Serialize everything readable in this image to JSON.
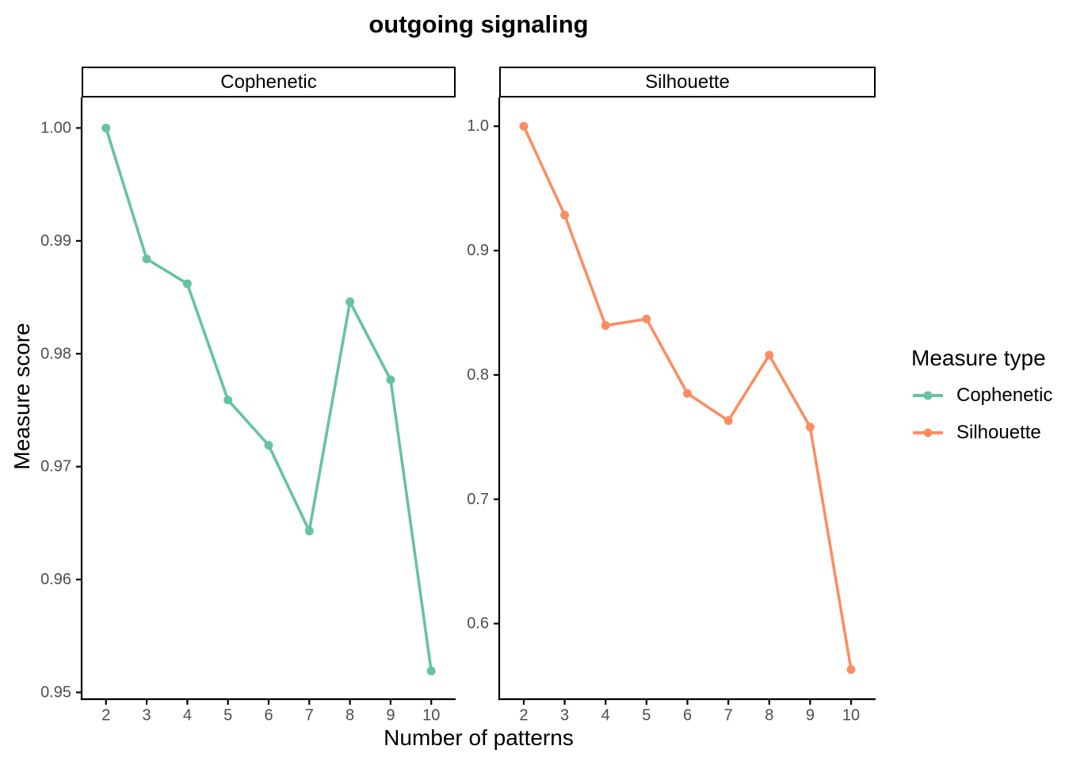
{
  "chart_data": {
    "type": "line",
    "title": "outgoing signaling",
    "xlabel": "Number of patterns",
    "ylabel": "Measure score",
    "legend_title": "Measure type",
    "legend_position": "right",
    "grid": false,
    "facets": [
      {
        "label": "Cophenetic",
        "series": "Cophenetic",
        "color": "#66C2A5",
        "x": [
          2,
          3,
          4,
          5,
          6,
          7,
          8,
          9,
          10
        ],
        "y": [
          1.0,
          0.9884,
          0.9862,
          0.9759,
          0.9719,
          0.9643,
          0.9846,
          0.9777,
          0.9519
        ],
        "xticks": [
          2,
          3,
          4,
          5,
          6,
          7,
          8,
          9,
          10
        ],
        "xtick_labels": [
          "2",
          "3",
          "4",
          "5",
          "6",
          "7",
          "8",
          "9",
          "10"
        ],
        "yticks": [
          0.95,
          0.96,
          0.97,
          0.98,
          0.99,
          1.0
        ],
        "ytick_labels": [
          "0.95",
          "0.96",
          "0.97",
          "0.98",
          "0.99",
          "1.00"
        ],
        "xlim": [
          1.4,
          10.6
        ],
        "ylim": [
          0.9494,
          1.0027
        ]
      },
      {
        "label": "Silhouette",
        "series": "Silhouette",
        "color": "#FC8D62",
        "x": [
          2,
          3,
          4,
          5,
          6,
          7,
          8,
          9,
          10
        ],
        "y": [
          1.0,
          0.9286,
          0.8397,
          0.845,
          0.7851,
          0.7632,
          0.8159,
          0.758,
          0.563
        ],
        "xticks": [
          2,
          3,
          4,
          5,
          6,
          7,
          8,
          9,
          10
        ],
        "xtick_labels": [
          "2",
          "3",
          "4",
          "5",
          "6",
          "7",
          "8",
          "9",
          "10"
        ],
        "yticks": [
          0.6,
          0.7,
          0.8,
          0.9,
          1.0
        ],
        "ytick_labels": [
          "0.6",
          "0.7",
          "0.8",
          "0.9",
          "1.0"
        ],
        "xlim": [
          1.4,
          10.6
        ],
        "ylim": [
          0.5392,
          1.0231
        ]
      }
    ],
    "legend": [
      {
        "label": "Cophenetic",
        "color": "#66C2A5"
      },
      {
        "label": "Silhouette",
        "color": "#FC8D62"
      }
    ],
    "colors": {
      "axis_text": "#4D4D4D",
      "axis_line": "#000000",
      "background": "#FFFFFF"
    }
  }
}
